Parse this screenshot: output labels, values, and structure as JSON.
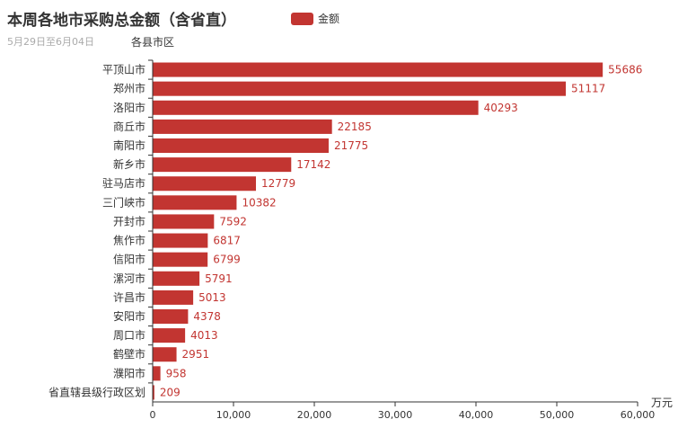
{
  "title": "本周各地市采购总金额（含省直）",
  "subtitle": "5月29日至6月04日",
  "legend": {
    "label": "金额"
  },
  "chart_data": {
    "type": "bar",
    "orientation": "horizontal",
    "y_axis_name": "各县市区",
    "x_axis_name": "万元",
    "xlim": [
      0,
      60000
    ],
    "x_ticks": [
      0,
      10000,
      20000,
      30000,
      40000,
      50000,
      60000
    ],
    "x_tick_labels": [
      "0",
      "10,000",
      "20,000",
      "30,000",
      "40,000",
      "50,000",
      "60,000"
    ],
    "categories": [
      "平顶山市",
      "郑州市",
      "洛阳市",
      "商丘市",
      "南阳市",
      "新乡市",
      "驻马店市",
      "三门峡市",
      "开封市",
      "焦作市",
      "信阳市",
      "漯河市",
      "许昌市",
      "安阳市",
      "周口市",
      "鹤壁市",
      "濮阳市",
      "省直辖县级行政区划"
    ],
    "series": [
      {
        "name": "金额",
        "color": "#c23531",
        "values": [
          55686,
          51117,
          40293,
          22185,
          21775,
          17142,
          12779,
          10382,
          7592,
          6817,
          6799,
          5791,
          5013,
          4378,
          4013,
          2951,
          958,
          209
        ]
      }
    ],
    "grid": false
  }
}
